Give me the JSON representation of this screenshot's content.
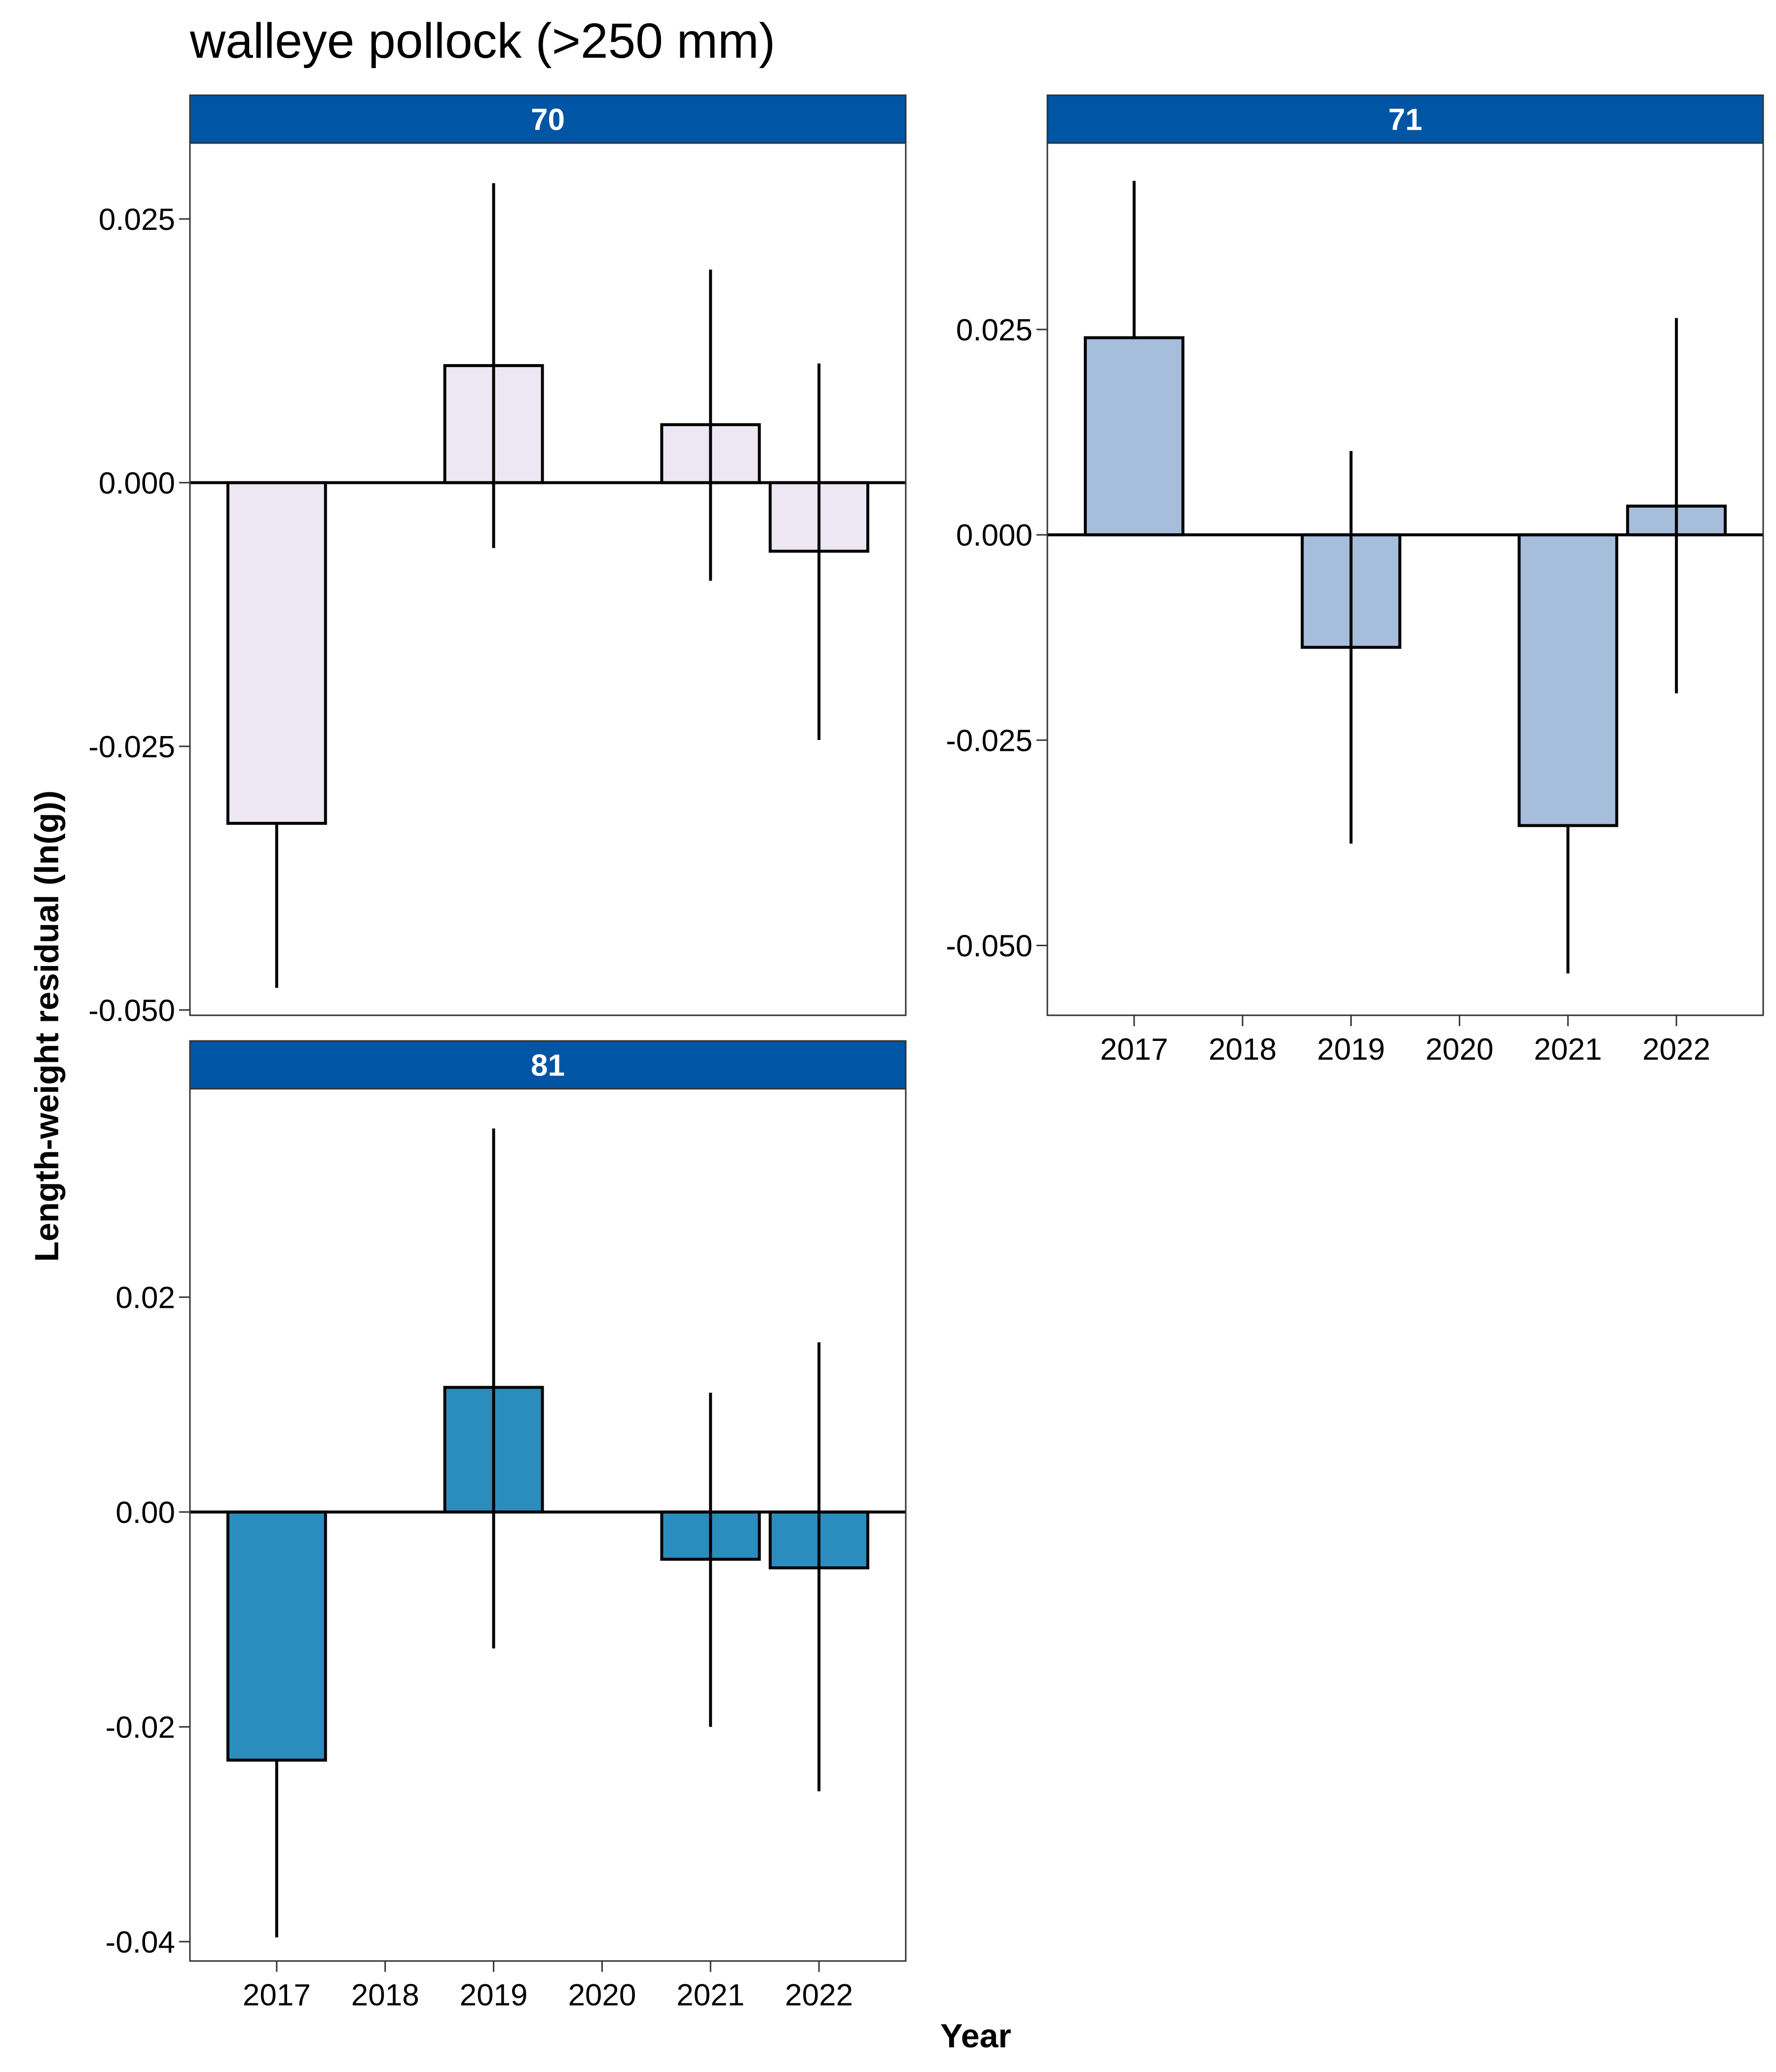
{
  "title": "walleye pollock (>250 mm)",
  "xlabel": "Year",
  "ylabel": "Length-weight residual (ln(g))",
  "colors": {
    "strip_fill": "#0055A4",
    "strip_text": "#ffffff",
    "bar_outline": "#000000"
  },
  "chart_data": [
    {
      "type": "bar",
      "panel": "70",
      "bar_color": "#ECE7F2",
      "categories": [
        "2017",
        "2018",
        "2019",
        "2020",
        "2021",
        "2022"
      ],
      "values": [
        -0.0323,
        null,
        0.0111,
        null,
        0.0055,
        -0.0065
      ],
      "error_low": [
        -0.0479,
        null,
        -0.0062,
        null,
        -0.0093,
        -0.0244
      ],
      "error_high": [
        null,
        null,
        0.0284,
        null,
        0.0202,
        0.0113
      ],
      "yticks": [
        "0.025",
        "0.000",
        "-0.025",
        "-0.050"
      ],
      "ylim": [
        -0.0505,
        0.0322
      ],
      "show_x_ticks": false
    },
    {
      "type": "bar",
      "panel": "71",
      "bar_color": "#A6BDDB",
      "categories": [
        "2017",
        "2018",
        "2019",
        "2020",
        "2021",
        "2022"
      ],
      "values": [
        0.024,
        null,
        -0.0137,
        null,
        -0.0354,
        0.0035
      ],
      "error_low": [
        null,
        null,
        -0.0376,
        null,
        -0.0534,
        -0.0193
      ],
      "error_high": [
        0.0431,
        null,
        0.0102,
        null,
        null,
        0.0264
      ],
      "yticks": [
        "0.025",
        "0.000",
        "-0.025",
        "-0.050"
      ],
      "ylim": [
        -0.0585,
        0.0477
      ],
      "show_x_ticks": true
    },
    {
      "type": "bar",
      "panel": "81",
      "bar_color": "#2B8CBE",
      "categories": [
        "2017",
        "2018",
        "2019",
        "2020",
        "2021",
        "2022"
      ],
      "values": [
        -0.0231,
        null,
        0.0116,
        null,
        -0.0044,
        -0.0052
      ],
      "error_low": [
        -0.0396,
        null,
        -0.0127,
        null,
        -0.02,
        -0.026
      ],
      "error_high": [
        null,
        null,
        0.0357,
        null,
        0.0111,
        0.0158
      ],
      "yticks": [
        "0.02",
        "0.00",
        "-0.02",
        "-0.04"
      ],
      "ylim": [
        -0.0418,
        0.0394
      ],
      "show_x_ticks": true
    }
  ]
}
